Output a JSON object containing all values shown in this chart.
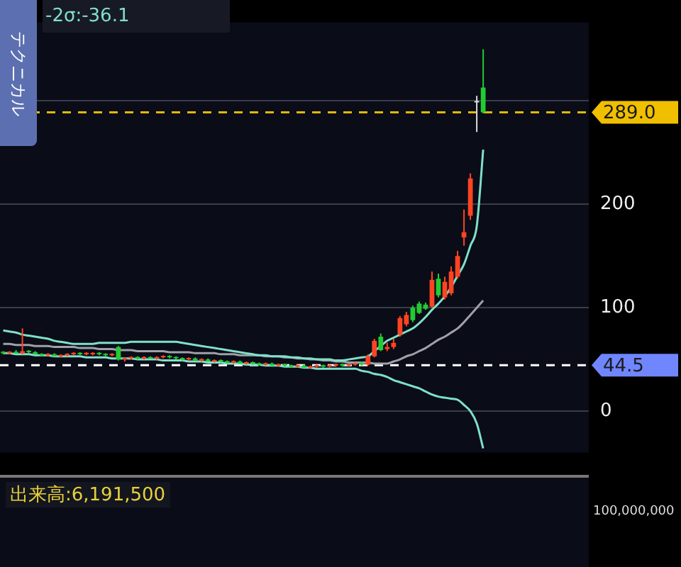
{
  "chart_data": {
    "type": "candlestick",
    "categories": [
      null,
      null,
      null,
      null,
      null,
      null,
      null,
      null,
      null,
      null,
      null,
      null,
      null,
      null,
      null,
      null,
      null,
      null,
      null,
      null,
      null,
      null,
      null,
      null,
      null,
      null,
      null,
      null,
      null,
      null,
      null,
      null,
      null,
      null,
      null,
      null,
      null,
      null,
      null,
      null,
      null,
      null,
      null,
      null,
      null,
      null,
      null,
      null,
      null,
      null,
      null,
      null,
      null,
      null,
      null,
      null,
      null,
      null,
      null,
      null,
      null,
      null,
      null,
      null,
      null,
      null,
      null,
      null,
      null,
      null,
      null,
      null,
      null,
      null,
      null,
      null,
      null,
      null,
      null,
      null,
      null,
      null,
      null,
      null,
      null,
      null,
      null,
      null,
      null,
      null,
      null,
      null
    ],
    "ohlc": [
      [
        57,
        58,
        55,
        56
      ],
      [
        56,
        58,
        55,
        57
      ],
      [
        57,
        59,
        56,
        56
      ],
      [
        56,
        80,
        55,
        58
      ],
      [
        58,
        59,
        56,
        57
      ],
      [
        57,
        58,
        55,
        55
      ],
      [
        55,
        56,
        53,
        54
      ],
      [
        54,
        56,
        53,
        55
      ],
      [
        55,
        56,
        53,
        53
      ],
      [
        53,
        55,
        52,
        54
      ],
      [
        54,
        56,
        53,
        55
      ],
      [
        55,
        57,
        54,
        56
      ],
      [
        56,
        57,
        54,
        55
      ],
      [
        55,
        57,
        54,
        56
      ],
      [
        55,
        57,
        54,
        56
      ],
      [
        56,
        57,
        54,
        55
      ],
      [
        55,
        56,
        53,
        54
      ],
      [
        54,
        56,
        53,
        55
      ],
      [
        62,
        63,
        49,
        50
      ],
      [
        50,
        52,
        48,
        51
      ],
      [
        51,
        53,
        50,
        52
      ],
      [
        52,
        53,
        50,
        51
      ],
      [
        51,
        53,
        50,
        52
      ],
      [
        52,
        53,
        51,
        51
      ],
      [
        51,
        53,
        50,
        52
      ],
      [
        52,
        54,
        51,
        53
      ],
      [
        53,
        54,
        51,
        52
      ],
      [
        52,
        53,
        50,
        51
      ],
      [
        51,
        52,
        49,
        50
      ],
      [
        50,
        52,
        49,
        51
      ],
      [
        51,
        52,
        49,
        49
      ],
      [
        49,
        51,
        48,
        50
      ],
      [
        50,
        51,
        48,
        48
      ],
      [
        48,
        50,
        47,
        49
      ],
      [
        49,
        50,
        47,
        48
      ],
      [
        48,
        49,
        46,
        47
      ],
      [
        47,
        49,
        46,
        48
      ],
      [
        48,
        49,
        46,
        46
      ],
      [
        46,
        48,
        45,
        47
      ],
      [
        47,
        48,
        45,
        46
      ],
      [
        46,
        47,
        44,
        45
      ],
      [
        45,
        47,
        44,
        46
      ],
      [
        46,
        47,
        44,
        44
      ],
      [
        44,
        46,
        43,
        45
      ],
      [
        45,
        46,
        43,
        44
      ],
      [
        44,
        45,
        42,
        43
      ],
      [
        43,
        45,
        42,
        44
      ],
      [
        44,
        45,
        42,
        42
      ],
      [
        42,
        44,
        41,
        43
      ],
      [
        43,
        45,
        42,
        44
      ],
      [
        44,
        45,
        42,
        43
      ],
      [
        43,
        45,
        42,
        44
      ],
      [
        44,
        46,
        43,
        45
      ],
      [
        45,
        46,
        43,
        44
      ],
      [
        44,
        46,
        43,
        45
      ],
      [
        45,
        47,
        44,
        46
      ],
      [
        46,
        48,
        44,
        45
      ],
      [
        45,
        55,
        44,
        53
      ],
      [
        53,
        70,
        52,
        68
      ],
      [
        72,
        75,
        58,
        59
      ],
      [
        60,
        66,
        58,
        62
      ],
      [
        62,
        70,
        60,
        66
      ],
      [
        74,
        92,
        72,
        90
      ],
      [
        84,
        96,
        82,
        93
      ],
      [
        100,
        102,
        86,
        88
      ],
      [
        104,
        106,
        94,
        95
      ],
      [
        103,
        105,
        98,
        99
      ],
      [
        101,
        135,
        100,
        127
      ],
      [
        128,
        133,
        110,
        112
      ],
      [
        110,
        130,
        108,
        125
      ],
      [
        114,
        140,
        112,
        135
      ],
      [
        130,
        155,
        128,
        150
      ],
      [
        168,
        195,
        160,
        173
      ],
      [
        189,
        230,
        185,
        225
      ],
      [
        300,
        305,
        270,
        300
      ],
      [
        313,
        350,
        288,
        289.0
      ],
      null,
      null,
      null,
      null,
      null,
      null,
      null,
      null,
      null,
      null,
      null,
      null,
      null,
      null,
      null,
      null
    ],
    "colors": [
      "#22cc33",
      "#ff4422",
      "#22cc33",
      "#ff4422",
      "#22cc33",
      "#22cc33",
      "#22cc33",
      "#ff4422",
      "#22cc33",
      "#ff4422",
      "#ff4422",
      "#ff4422",
      "#22cc33",
      "#ff4422",
      "#ff4422",
      "#22cc33",
      "#22cc33",
      "#ff4422",
      "#22cc33",
      "#ff4422",
      "#ff4422",
      "#22cc33",
      "#ff4422",
      "#22cc33",
      "#ff4422",
      "#ff4422",
      "#22cc33",
      "#22cc33",
      "#22cc33",
      "#ff4422",
      "#22cc33",
      "#ff4422",
      "#22cc33",
      "#ff4422",
      "#22cc33",
      "#22cc33",
      "#ff4422",
      "#22cc33",
      "#ff4422",
      "#22cc33",
      "#22cc33",
      "#ff4422",
      "#22cc33",
      "#ff4422",
      "#22cc33",
      "#22cc33",
      "#ff4422",
      "#22cc33",
      "#ff4422",
      "#ff4422",
      "#22cc33",
      "#ff4422",
      "#ff4422",
      "#22cc33",
      "#ff4422",
      "#ff4422",
      "#22cc33",
      "#ff4422",
      "#ff4422",
      "#22cc33",
      "#ff4422",
      "#ff4422",
      "#ff4422",
      "#ff4422",
      "#22cc33",
      "#22cc33",
      "#22cc33",
      "#ff4422",
      "#22cc33",
      "#ff4422",
      "#ff4422",
      "#ff4422",
      "#ff4422",
      "#ff4422",
      "#dddddd",
      "#22cc33",
      null,
      null,
      null,
      null,
      null,
      null,
      null,
      null,
      null,
      null,
      null,
      null,
      null,
      null,
      null,
      null
    ],
    "series": [
      {
        "type": "line",
        "color": "#7fe0c8",
        "values": [
          78,
          77,
          76,
          74,
          73,
          72,
          71,
          70,
          68,
          67,
          66,
          65,
          65,
          65,
          65,
          66,
          66,
          66,
          66,
          66,
          67,
          67,
          67,
          67,
          67,
          67,
          67,
          67,
          66,
          65,
          64,
          63,
          62,
          61,
          60,
          59,
          58,
          57,
          56,
          55,
          54,
          54,
          53,
          53,
          53,
          52,
          52,
          51,
          51,
          50,
          50,
          50,
          49,
          49,
          50,
          51,
          52,
          53,
          58,
          63,
          68,
          71,
          74,
          77,
          80,
          85,
          91,
          98,
          104,
          111,
          120,
          131,
          142,
          160,
          179,
          253,
          null,
          null,
          null,
          null,
          null,
          null,
          null,
          null,
          null,
          null,
          null,
          null,
          null,
          null,
          null,
          null
        ]
      },
      {
        "type": "line",
        "color": "#a0a0a8",
        "values": [
          65,
          65,
          64,
          64,
          64,
          63,
          63,
          63,
          62,
          62,
          62,
          62,
          61,
          61,
          61,
          60,
          60,
          60,
          59,
          59,
          59,
          58,
          58,
          58,
          58,
          58,
          57,
          57,
          57,
          57,
          56,
          56,
          56,
          56,
          55,
          55,
          55,
          54,
          54,
          54,
          54,
          53,
          53,
          53,
          52,
          52,
          51,
          51,
          50,
          50,
          49,
          49,
          48,
          48,
          47,
          47,
          47,
          47,
          46,
          46,
          46,
          48,
          50,
          53,
          55,
          58,
          61,
          65,
          69,
          72,
          76,
          80,
          86,
          93,
          100,
          107,
          null,
          null,
          null,
          null,
          null,
          null,
          null,
          null,
          null,
          null,
          null,
          null,
          null,
          null,
          null,
          null
        ]
      },
      {
        "type": "line",
        "color": "#7fe0c8",
        "values": [
          56,
          56,
          55,
          55,
          55,
          54,
          54,
          54,
          53,
          53,
          53,
          53,
          53,
          52,
          52,
          52,
          52,
          51,
          51,
          51,
          51,
          50,
          50,
          50,
          50,
          49,
          49,
          49,
          49,
          48,
          48,
          48,
          47,
          47,
          47,
          46,
          46,
          46,
          45,
          45,
          45,
          44,
          44,
          44,
          43,
          43,
          43,
          42,
          42,
          41,
          41,
          41,
          41,
          41,
          41,
          41,
          39,
          38,
          36,
          35,
          33,
          30,
          28,
          26,
          24,
          22,
          19,
          16,
          14,
          13,
          12,
          11,
          6,
          0,
          -12,
          -36.1,
          null,
          null,
          null,
          null,
          null,
          null,
          null,
          null,
          null,
          null,
          null,
          null,
          null,
          null,
          null,
          null
        ]
      }
    ],
    "ylim": [
      -40,
      376
    ],
    "yticks": [
      0,
      100,
      200,
      {
        "value": 300,
        "label": null
      }
    ],
    "grid": "y",
    "legend": false,
    "tick_labels": "y",
    "ref_lines": [
      {
        "axis": "y",
        "value": 289.0,
        "label": "289.0",
        "color": "#e6b800",
        "line_style": "dashed"
      },
      {
        "axis": "y",
        "value": 44.5,
        "label": "44.5",
        "color": "#ffffff",
        "line_style": "dashed"
      }
    ],
    "annotations": [
      "-2σ:-36.1",
      "テクニカル",
      "出来高:6,191,500",
      "100,000,000"
    ]
  }
}
